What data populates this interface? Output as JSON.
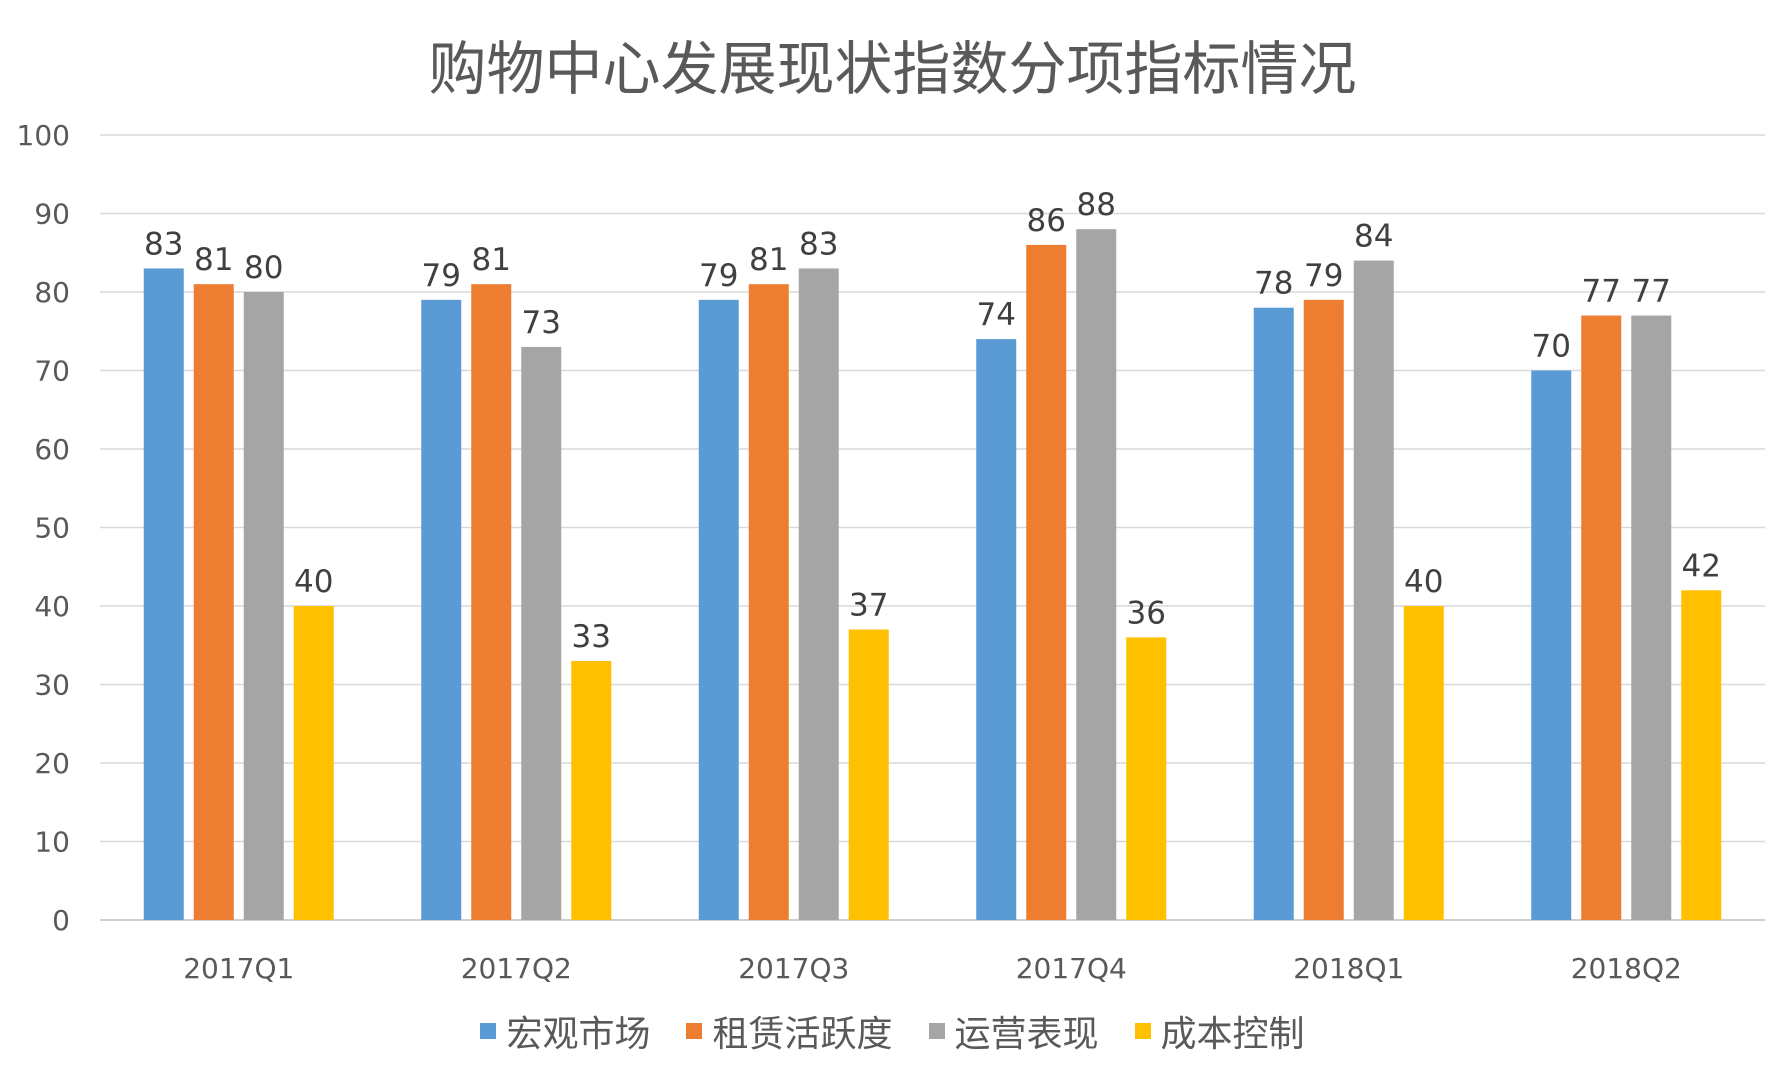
{
  "chart_data": {
    "type": "bar",
    "title": "购物中心发展现状指数分项指标情况",
    "categories": [
      "2017Q1",
      "2017Q2",
      "2017Q3",
      "2017Q4",
      "2018Q1",
      "2018Q2"
    ],
    "series": [
      {
        "name": "宏观市场",
        "color": "#5B9BD5",
        "values": [
          83,
          79,
          79,
          74,
          78,
          70
        ]
      },
      {
        "name": "租赁活跃度",
        "color": "#ED7D31",
        "values": [
          81,
          81,
          81,
          86,
          79,
          77
        ]
      },
      {
        "name": "运营表现",
        "color": "#A5A5A5",
        "values": [
          80,
          73,
          83,
          88,
          84,
          77
        ]
      },
      {
        "name": "成本控制",
        "color": "#FFC000",
        "values": [
          40,
          33,
          37,
          36,
          40,
          42
        ]
      }
    ],
    "ylim": [
      0,
      100
    ],
    "yticks": [
      0,
      10,
      20,
      30,
      40,
      50,
      60,
      70,
      80,
      90,
      100
    ],
    "grid": true,
    "legend_position": "bottom",
    "data_labels": true
  }
}
